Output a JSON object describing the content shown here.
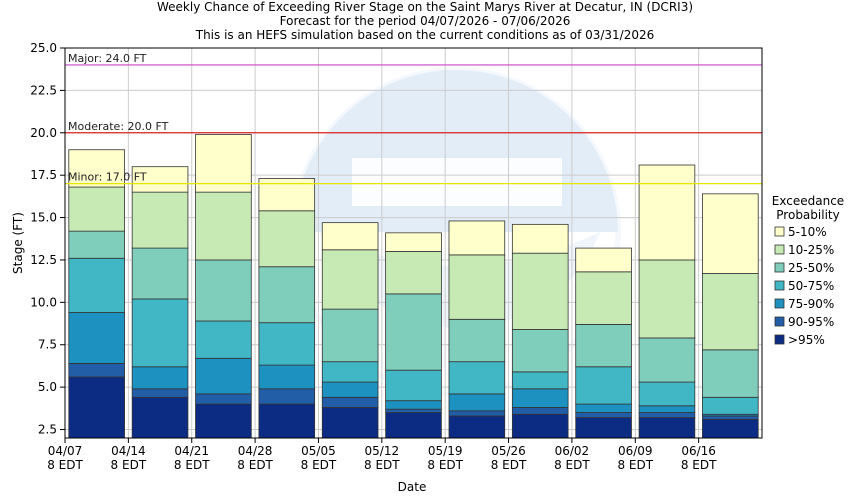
{
  "chart_data": {
    "type": "bar",
    "stacked": true,
    "title_lines": [
      "Weekly Chance of Exceeding River Stage on the Saint Marys River at Decatur, IN (DCRI3)",
      "Forecast for the period 04/07/2026 - 07/06/2026",
      "This is an HEFS simulation based on the current conditions as of 03/31/2026"
    ],
    "xlabel": "Date",
    "ylabel": "Stage (FT)",
    "ylim": [
      2.0,
      25.0
    ],
    "yticks": [
      "2.5",
      "5.0",
      "7.5",
      "10.0",
      "12.5",
      "15.0",
      "17.5",
      "20.0",
      "22.5",
      "25.0"
    ],
    "xticks": [
      {
        "line1": "04/07",
        "line2": "8 EDT"
      },
      {
        "line1": "04/14",
        "line2": "8 EDT"
      },
      {
        "line1": "04/21",
        "line2": "8 EDT"
      },
      {
        "line1": "04/28",
        "line2": "8 EDT"
      },
      {
        "line1": "05/05",
        "line2": "8 EDT"
      },
      {
        "line1": "05/12",
        "line2": "8 EDT"
      },
      {
        "line1": "05/19",
        "line2": "8 EDT"
      },
      {
        "line1": "05/26",
        "line2": "8 EDT"
      },
      {
        "line1": "06/02",
        "line2": "8 EDT"
      },
      {
        "line1": "06/09",
        "line2": "8 EDT"
      },
      {
        "line1": "06/16",
        "line2": "8 EDT"
      }
    ],
    "grid": true,
    "legend_placement": "right",
    "legend_title_lines": [
      "Exceedance",
      "Probability"
    ],
    "thresholds": [
      {
        "label": "Major: 24.0 FT",
        "value": 24.0,
        "color": "#cc44cc"
      },
      {
        "label": "Moderate: 20.0 FT",
        "value": 20.0,
        "color": "#dd2222"
      },
      {
        "label": "Minor: 17.0 FT",
        "value": 17.0,
        "color": "#e6e600"
      }
    ],
    "series": [
      {
        "name": "5-10%",
        "color": "#ffffcc"
      },
      {
        "name": "10-25%",
        "color": "#c7e9b4"
      },
      {
        "name": "25-50%",
        "color": "#7fcdbb"
      },
      {
        "name": "50-75%",
        "color": "#41b6c4"
      },
      {
        "name": "75-90%",
        "color": "#1d91c0"
      },
      {
        "name": "90-95%",
        "color": "#225ea8"
      },
      {
        "name": ">95%",
        "color": "#0c2c84"
      }
    ],
    "weeks": [
      [
        5.6,
        6.4,
        9.4,
        12.6,
        14.2,
        16.8,
        19.0
      ],
      [
        4.4,
        4.9,
        6.2,
        10.2,
        13.2,
        16.5,
        18.0
      ],
      [
        4.0,
        4.6,
        6.7,
        8.9,
        12.5,
        16.5,
        19.9
      ],
      [
        4.0,
        4.9,
        6.3,
        8.8,
        12.1,
        15.4,
        17.3
      ],
      [
        3.8,
        4.4,
        5.3,
        6.5,
        9.6,
        13.1,
        14.7
      ],
      [
        3.5,
        3.7,
        4.2,
        6.0,
        10.5,
        13.0,
        14.1
      ],
      [
        3.3,
        3.6,
        4.6,
        6.5,
        9.0,
        12.8,
        14.8
      ],
      [
        3.4,
        3.8,
        4.9,
        5.9,
        8.4,
        12.9,
        14.6
      ],
      [
        3.2,
        3.5,
        4.0,
        6.2,
        8.7,
        11.8,
        13.2
      ],
      [
        3.2,
        3.5,
        3.9,
        5.3,
        7.9,
        12.5,
        18.1
      ],
      [
        3.1,
        3.3,
        3.4,
        4.4,
        7.2,
        11.7,
        16.4
      ]
    ]
  }
}
